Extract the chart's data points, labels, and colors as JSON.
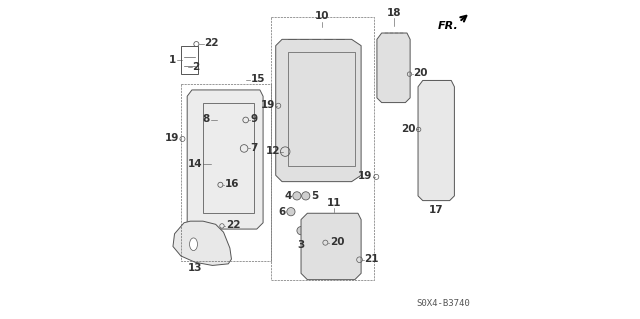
{
  "bg_color": "#ffffff",
  "diagram_code": "S0X4-B3740",
  "fr_label": "FR.",
  "label_fontsize": 7.5
}
